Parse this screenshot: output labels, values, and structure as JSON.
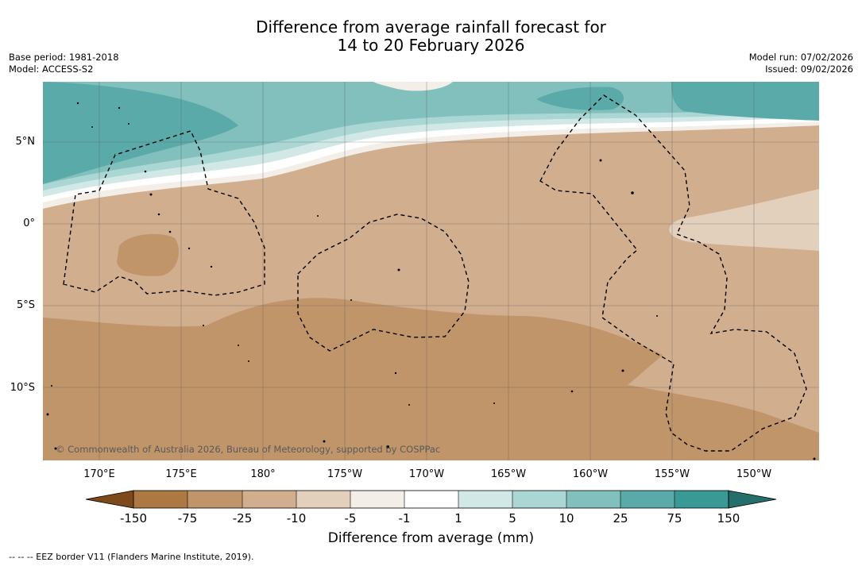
{
  "title": {
    "line1": "Difference from average rainfall forecast for",
    "line2": "14 to 20 February 2026"
  },
  "meta_left": {
    "base_period": "Base period: 1981-2018",
    "model": "Model: ACCESS-S2"
  },
  "meta_right": {
    "model_run": "Model run: 07/02/2026",
    "issued": "Issued: 09/02/2026"
  },
  "lat_labels": [
    "5°N",
    "0°",
    "5°S",
    "10°S"
  ],
  "lon_labels": [
    "170°E",
    "175°E",
    "180°",
    "175°W",
    "170°W",
    "165°W",
    "160°W",
    "155°W",
    "150°W"
  ],
  "copyright": "© Commonwealth of Australia 2026, Bureau of Meteorology, supported by COSPPac",
  "colorbar": {
    "ticks": [
      "-150",
      "-75",
      "-25",
      "-10",
      "-5",
      "-1",
      "1",
      "5",
      "10",
      "25",
      "75",
      "150"
    ],
    "colors": {
      "lt_-150": "#7e4a1c",
      "-150_-75": "#ab7941",
      "-75_-25": "#c09569",
      "-25_-10": "#d0ae8e",
      "-10_-5": "#e2d0bd",
      "-5_-1": "#f3eee8",
      "-1_1": "#ffffff",
      "1_5": "#d2e8e6",
      "5_10": "#aad6d4",
      "10_25": "#82c0be",
      "25_75": "#5aaaa9",
      "75_150": "#389995",
      "gt_150": "#246e6b"
    },
    "label": "Difference from average (mm)"
  },
  "footer": "--  --  -- EEZ border V11 (Flanders Marine Institute, 2019)."
}
